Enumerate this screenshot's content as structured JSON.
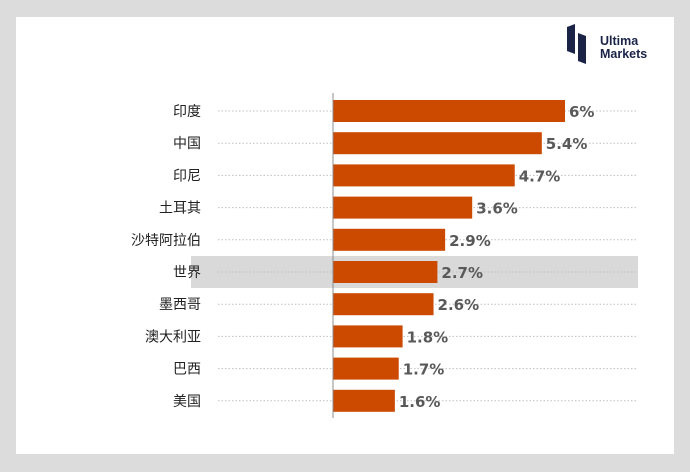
{
  "brand": {
    "line1": "Ultima",
    "line2": "Markets",
    "color": "#1b2447"
  },
  "chart_data": {
    "type": "bar",
    "orientation": "horizontal",
    "categories": [
      "印度",
      "中国",
      "印尼",
      "土耳其",
      "沙特阿拉伯",
      "世界",
      "墨西哥",
      "澳大利亚",
      "巴西",
      "美国"
    ],
    "values": [
      6,
      5.4,
      4.7,
      3.6,
      2.9,
      2.7,
      2.6,
      1.8,
      1.7,
      1.6
    ],
    "labels": [
      "6%",
      "5.4%",
      "4.7%",
      "3.6%",
      "2.9%",
      "2.7%",
      "2.6%",
      "1.8%",
      "1.7%",
      "1.6%"
    ],
    "highlighted": [
      "世界"
    ],
    "xlim": [
      0,
      6.5
    ],
    "grid": "dotted horizontal guides",
    "colors": {
      "bar": "#cc4a00",
      "highlight_band": "#d9d9d9",
      "label": "#595959",
      "category": "#222222",
      "guide": "#bfbfbf"
    }
  }
}
